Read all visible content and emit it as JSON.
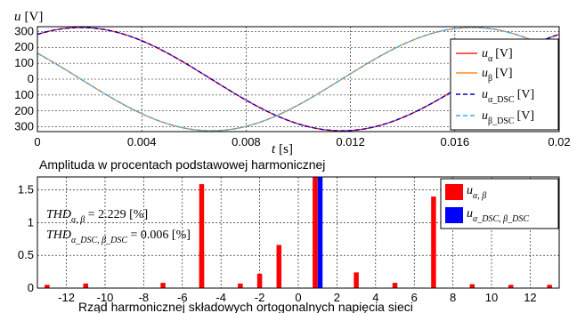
{
  "chart_data": [
    {
      "type": "line",
      "ylabel": "u [V]",
      "ylabel_main": "u",
      "ylabel_unit": "[V]",
      "xlabel": "t [s]",
      "xlabel_main": "t",
      "xlabel_unit": "[s]",
      "xlim": [
        0,
        0.02
      ],
      "ylim": [
        -330,
        330
      ],
      "x_ticks": [
        "0",
        "0.004",
        "0.008",
        "0.012",
        "0.016",
        "0.02"
      ],
      "y_ticks": [
        "300",
        "200",
        "100",
        "0",
        "100",
        "200",
        "300"
      ],
      "grid": true,
      "legend_position": "right",
      "amplitude": 325,
      "frequency_hz": 50,
      "series": [
        {
          "name": "u_α [V]",
          "label_main": "u",
          "label_sub": "α",
          "label_unit": "[V]",
          "phase_deg": 60,
          "color": "#ff2222",
          "dash": "solid"
        },
        {
          "name": "u_β [V]",
          "label_main": "u",
          "label_sub": "β",
          "label_unit": "[V]",
          "phase_deg": 150,
          "color": "#ff8c1a",
          "dash": "solid"
        },
        {
          "name": "u_α_DSC [V]",
          "label_main": "u",
          "label_sub": "α_DSC",
          "label_unit": "[V]",
          "phase_deg": 60,
          "color": "#0000cc",
          "dash": "dashed"
        },
        {
          "name": "u_β_DSC [V]",
          "label_main": "u",
          "label_sub": "β_DSC",
          "label_unit": "[V]",
          "phase_deg": 150,
          "color": "#33aaff",
          "dash": "dashed"
        }
      ]
    },
    {
      "type": "bar",
      "title": "Amplituda w procentach podstawowej harmonicznej",
      "xlabel": "Rząd harmonicznej składowych ortogonalnych napięcia sieci",
      "ylim": [
        0,
        1.7
      ],
      "xlim": [
        -13.5,
        13.5
      ],
      "x_ticks": [
        "-12",
        "-10",
        "-8",
        "-6",
        "-4",
        "-2",
        "0",
        "2",
        "4",
        "6",
        "8",
        "10",
        "12"
      ],
      "y_ticks": [
        "0",
        "0.5",
        "1",
        "1.5"
      ],
      "grid": true,
      "legend_position": "top-right",
      "annotations": [
        {
          "main": "THD",
          "sub": "α, β",
          "text": " = 2.229 [%]"
        },
        {
          "main": "THD",
          "sub": "α_DSC, β_DSC",
          "text": " = 0.006 [%]"
        }
      ],
      "series": [
        {
          "name": "u_α, β",
          "label_main": "u",
          "label_sub": "α, β",
          "color": "#ff0000",
          "x": [
            -13,
            -11,
            -7,
            -5,
            -5,
            -3,
            -2,
            -1,
            1,
            3,
            5,
            7,
            9,
            11,
            13
          ],
          "values": [
            0.05,
            0.07,
            0.08,
            1.59,
            0.58,
            0.07,
            0.22,
            0.66,
            1.7,
            0.24,
            0.08,
            1.4,
            0.06,
            0.05,
            0.05
          ]
        },
        {
          "name": "u_α_DSC, β_DSC",
          "label_main": "u",
          "label_sub": "α_DSC, β_DSC",
          "color": "#0000ff",
          "x": [
            1
          ],
          "values": [
            1.7
          ]
        }
      ]
    }
  ]
}
